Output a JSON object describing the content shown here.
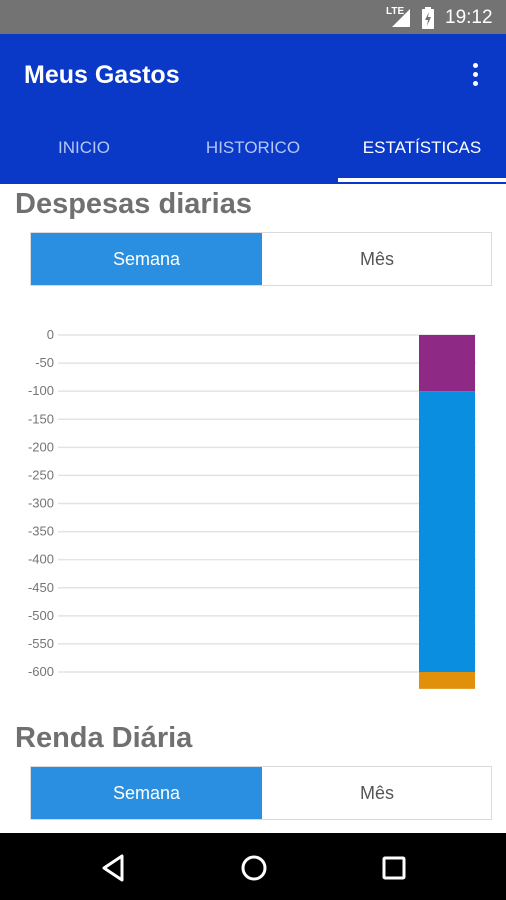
{
  "status_bar": {
    "network": "LTE",
    "time": "19:12"
  },
  "app": {
    "title": "Meus Gastos",
    "menu_icon": "overflow-menu-icon"
  },
  "tabs": [
    {
      "label": "INICIO",
      "active": false
    },
    {
      "label": "HISTORICO",
      "active": false
    },
    {
      "label": "ESTATÍSTICAS",
      "active": true
    }
  ],
  "colors": {
    "primary": "#0a39c8",
    "segment_active": "#2a8fe0",
    "status_bar": "#737373"
  },
  "despesas": {
    "title": "Despesas diarias",
    "segment": {
      "week_label": "Semana",
      "month_label": "Mês",
      "selected": "Semana"
    }
  },
  "renda": {
    "title": "Renda Diária",
    "segment": {
      "week_label": "Semana",
      "month_label": "Mês",
      "selected": "Semana"
    }
  },
  "chart_data": {
    "type": "bar",
    "stacked": true,
    "title": "",
    "xlabel": "",
    "ylabel": "",
    "ylim": [
      -600,
      0
    ],
    "y_ticks": [
      "0",
      "-50",
      "-100",
      "-150",
      "-200",
      "-250",
      "-300",
      "-350",
      "-400",
      "-450",
      "-500",
      "-550",
      "-600"
    ],
    "grid": true,
    "categories": [
      ""
    ],
    "series": [
      {
        "color": "#8e2a86",
        "values": [
          -100
        ]
      },
      {
        "color": "#0a8fe0",
        "values": [
          -500
        ]
      },
      {
        "color": "#e0900a",
        "values": [
          -30
        ]
      }
    ]
  },
  "nav_bar": {
    "back_icon": "back-icon",
    "home_icon": "home-icon",
    "recents_icon": "recents-icon"
  }
}
